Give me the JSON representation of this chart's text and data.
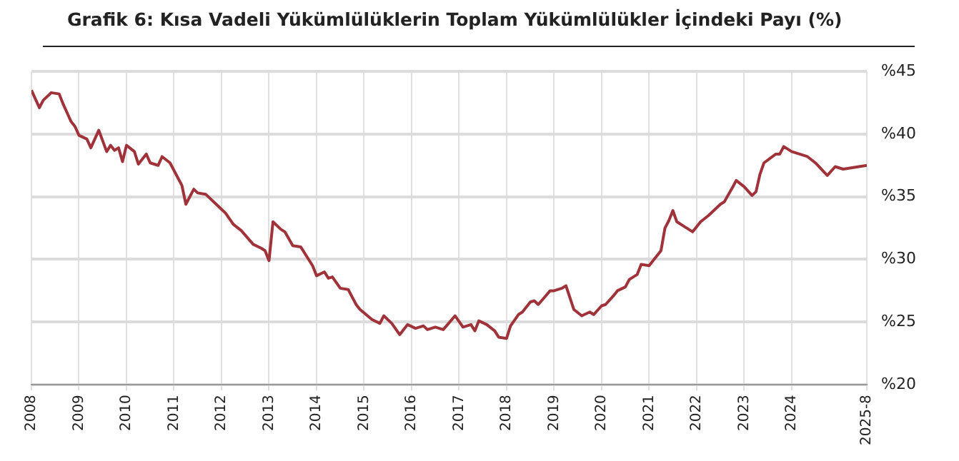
{
  "chart_data": {
    "type": "line",
    "title": "Grafik 6: Kısa Vadeli Yükümlülüklerin Toplam Yükümlülükler İçindeki Payı (%)",
    "x": [
      "2008-01",
      "2008-03",
      "2008-04",
      "2008-06",
      "2008-08",
      "2008-09",
      "2008-11",
      "2008-12",
      "2009-01",
      "2009-03",
      "2009-04",
      "2009-06",
      "2009-08",
      "2009-09",
      "2009-10",
      "2009-11",
      "2009-12",
      "2010-01",
      "2010-03",
      "2010-04",
      "2010-06",
      "2010-07",
      "2010-09",
      "2010-10",
      "2010-12",
      "2011-03",
      "2011-04",
      "2011-06",
      "2011-07",
      "2011-09",
      "2011-12",
      "2012-02",
      "2012-04",
      "2012-06",
      "2012-09",
      "2012-11",
      "2012-12",
      "2013-01",
      "2013-02",
      "2013-04",
      "2013-05",
      "2013-07",
      "2013-09",
      "2013-11",
      "2013-12",
      "2014-01",
      "2014-03",
      "2014-04",
      "2014-05",
      "2014-07",
      "2014-09",
      "2014-11",
      "2014-12",
      "2015-03",
      "2015-05",
      "2015-06",
      "2015-08",
      "2015-10",
      "2015-12",
      "2016-02",
      "2016-04",
      "2016-05",
      "2016-07",
      "2016-09",
      "2016-12",
      "2017-02",
      "2017-04",
      "2017-05",
      "2017-06",
      "2017-08",
      "2017-10",
      "2017-11",
      "2018-01",
      "2018-02",
      "2018-04",
      "2018-05",
      "2018-07",
      "2018-08",
      "2018-09",
      "2018-12",
      "2019-01",
      "2019-03",
      "2019-04",
      "2019-06",
      "2019-08",
      "2019-10",
      "2019-11",
      "2020-01",
      "2020-02",
      "2020-04",
      "2020-05",
      "2020-07",
      "2020-08",
      "2020-10",
      "2020-11",
      "2021-01",
      "2021-04",
      "2021-05",
      "2021-06",
      "2021-07",
      "2021-08",
      "2021-10",
      "2021-12",
      "2022-02",
      "2022-04",
      "2022-05",
      "2022-07",
      "2022-08",
      "2022-10",
      "2022-11",
      "2023-01",
      "2023-03",
      "2023-04",
      "2023-05",
      "2023-06",
      "2023-09",
      "2023-10",
      "2023-11",
      "2024-01",
      "2024-05",
      "2024-07",
      "2024-10",
      "2024-12",
      "2025-02",
      "2025-08"
    ],
    "series": [
      {
        "color": "#a0323a",
        "values": [
          43.5,
          42.1,
          42.7,
          43.3,
          43.2,
          42.4,
          41.0,
          40.6,
          39.9,
          39.6,
          38.9,
          40.3,
          38.6,
          39.1,
          38.7,
          38.9,
          37.8,
          39.1,
          38.6,
          37.6,
          38.4,
          37.7,
          37.5,
          38.2,
          37.7,
          35.9,
          34.4,
          35.6,
          35.3,
          35.2,
          34.3,
          33.7,
          32.8,
          32.3,
          31.2,
          30.9,
          30.7,
          29.9,
          33.0,
          32.4,
          32.2,
          31.1,
          31.0,
          30.0,
          29.5,
          28.7,
          29.0,
          28.5,
          28.6,
          27.7,
          27.6,
          26.4,
          26.0,
          25.2,
          24.9,
          25.5,
          24.9,
          24.0,
          24.8,
          24.5,
          24.7,
          24.4,
          24.6,
          24.4,
          25.5,
          24.6,
          24.8,
          24.3,
          25.1,
          24.8,
          24.3,
          23.8,
          23.7,
          24.7,
          25.6,
          25.8,
          26.6,
          26.7,
          26.4,
          27.5,
          27.5,
          27.7,
          27.9,
          26.0,
          25.5,
          25.8,
          25.6,
          26.3,
          26.4,
          27.1,
          27.5,
          27.8,
          28.4,
          28.8,
          29.6,
          29.5,
          30.7,
          32.5,
          33.1,
          33.9,
          33.0,
          32.6,
          32.2,
          33.0,
          33.5,
          33.8,
          34.4,
          34.6,
          35.7,
          36.3,
          35.8,
          35.1,
          35.4,
          36.8,
          37.7,
          38.4,
          38.4,
          39.0,
          38.6,
          38.2,
          37.7,
          36.7,
          37.4,
          37.2,
          37.5
        ]
      }
    ],
    "xlim": [
      "2008-01",
      "2025-08"
    ],
    "xticks": [
      "2008",
      "2009",
      "2010",
      "2011",
      "2012",
      "2013",
      "2014",
      "2015",
      "2016",
      "2017",
      "2018",
      "2019",
      "2020",
      "2021",
      "2022",
      "2023",
      "2024",
      {
        "value": "2025-08",
        "label": "2025-8"
      }
    ],
    "ylim": [
      20,
      45
    ],
    "yticks": [
      {
        "value": 20,
        "label": "%20"
      },
      {
        "value": 25,
        "label": "%25"
      },
      {
        "value": 30,
        "label": "%30"
      },
      {
        "value": 35,
        "label": "%35"
      },
      {
        "value": 40,
        "label": "%40"
      },
      {
        "value": 45,
        "label": "%45"
      }
    ],
    "grid": true,
    "legend": false,
    "marker": "none",
    "line_style": "solid"
  }
}
